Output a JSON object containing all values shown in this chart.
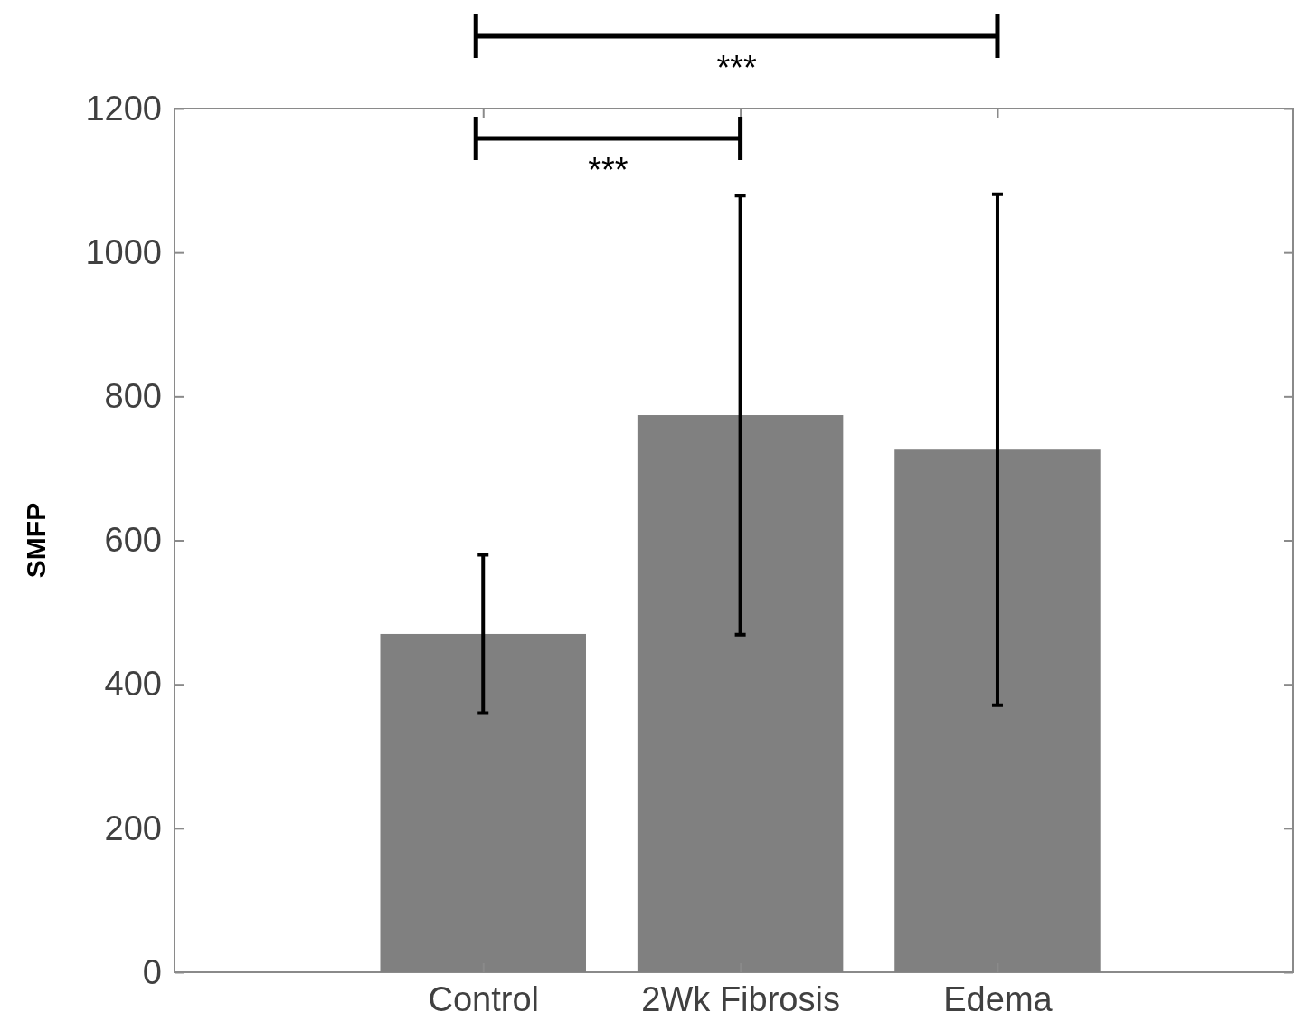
{
  "chart_data": {
    "type": "bar",
    "ylabel": "SMFP",
    "categories": [
      "Control",
      "2Wk Fibrosis",
      "Edema"
    ],
    "values": [
      470,
      774,
      726
    ],
    "errors": [
      110,
      305,
      355
    ],
    "color": "#808080",
    "ylim": [
      0,
      1200
    ],
    "yticks": [
      0,
      200,
      400,
      600,
      800,
      1000,
      1200
    ],
    "annotations": [
      "***",
      "***"
    ]
  }
}
